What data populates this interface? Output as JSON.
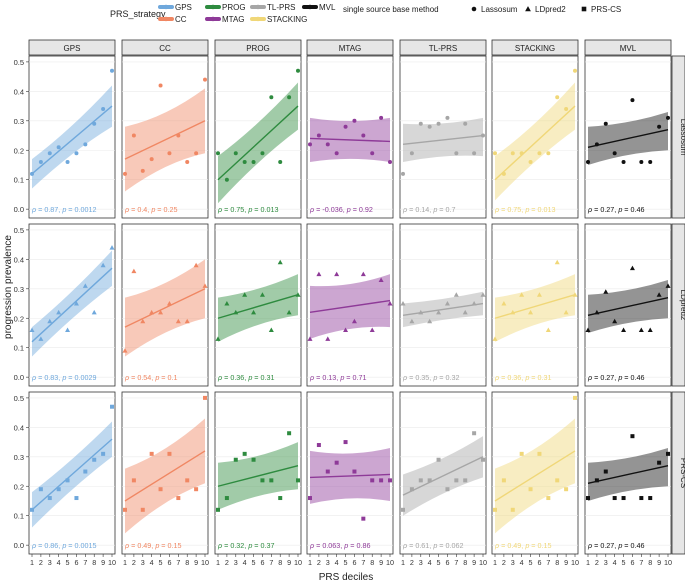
{
  "legend": {
    "strategy_title": "PRS_strategy",
    "strategies": [
      {
        "name": "GPS",
        "color": "#6fa8dc"
      },
      {
        "name": "CC",
        "color": "#f08763"
      },
      {
        "name": "PROG",
        "color": "#2e8b3f"
      },
      {
        "name": "MTAG",
        "color": "#8e3a98"
      },
      {
        "name": "TL-PRS",
        "color": "#a6a6a6"
      },
      {
        "name": "STACKING",
        "color": "#f0d778"
      },
      {
        "name": "MVL",
        "color": "#111111"
      }
    ],
    "method_title": "single source base method",
    "methods": [
      {
        "name": "Lassosum",
        "shape": "circle"
      },
      {
        "name": "LDpred2",
        "shape": "triangle"
      },
      {
        "name": "PRS-CS",
        "shape": "square"
      }
    ]
  },
  "chart_data": {
    "type": "scatter",
    "xlabel": "PRS deciles",
    "ylabel": "progression prevalence",
    "x": [
      1,
      2,
      3,
      4,
      5,
      6,
      7,
      8,
      9,
      10
    ],
    "xticks": [
      1,
      2,
      3,
      4,
      5,
      6,
      7,
      8,
      9,
      10
    ],
    "ylim": [
      -0.03,
      0.52
    ],
    "yticks": [
      0.0,
      0.1,
      0.2,
      0.3,
      0.4,
      0.5
    ],
    "ytick_labels": [
      "0.0",
      "0.1",
      "0.2",
      "0.3",
      "0.4",
      "0.5"
    ],
    "columns": [
      "GPS",
      "CC",
      "PROG",
      "MTAG",
      "TL-PRS",
      "STACKING",
      "MVL"
    ],
    "rows": [
      "Lassosum",
      "LDpred2",
      "PRS-CS"
    ],
    "panels": {
      "Lassosum": {
        "GPS": {
          "values": [
            0.12,
            0.16,
            0.19,
            0.21,
            0.16,
            0.19,
            0.22,
            0.29,
            0.34,
            0.47
          ],
          "fit": [
            0.12,
            0.35
          ],
          "band": [
            [
              0.07,
              0.17
            ],
            [
              0.28,
              0.42
            ]
          ],
          "rho": "0.87",
          "p": "0.0012"
        },
        "CC": {
          "values": [
            0.12,
            0.25,
            0.13,
            0.17,
            0.42,
            0.19,
            0.25,
            0.16,
            0.19,
            0.44
          ],
          "fit": [
            0.17,
            0.3
          ],
          "band": [
            [
              0.06,
              0.28
            ],
            [
              0.19,
              0.41
            ]
          ],
          "rho": "0.4",
          "p": "0.25"
        },
        "PROG": {
          "values": [
            0.19,
            0.1,
            0.19,
            0.16,
            0.16,
            0.19,
            0.38,
            0.16,
            0.38,
            0.47
          ],
          "fit": [
            0.1,
            0.35
          ],
          "band": [
            [
              0.02,
              0.18
            ],
            [
              0.27,
              0.43
            ]
          ],
          "rho": "0.75",
          "p": "0.013"
        },
        "MTAG": {
          "values": [
            0.22,
            0.25,
            0.22,
            0.19,
            0.28,
            0.3,
            0.25,
            0.19,
            0.31,
            0.16
          ],
          "fit": [
            0.24,
            0.23
          ],
          "band": [
            [
              0.16,
              0.31
            ],
            [
              0.16,
              0.31
            ]
          ],
          "rho": "-0.036",
          "p": "0.92"
        },
        "TL-PRS": {
          "values": [
            0.12,
            0.19,
            0.29,
            0.28,
            0.29,
            0.31,
            0.19,
            0.29,
            0.19,
            0.25
          ],
          "fit": [
            0.22,
            0.25
          ],
          "band": [
            [
              0.16,
              0.29
            ],
            [
              0.18,
              0.31
            ]
          ],
          "rho": "0.14",
          "p": "0.7"
        },
        "STACKING": {
          "values": [
            0.19,
            0.12,
            0.19,
            0.19,
            0.16,
            0.19,
            0.19,
            0.38,
            0.34,
            0.47
          ],
          "fit": [
            0.1,
            0.35
          ],
          "band": [
            [
              0.03,
              0.18
            ],
            [
              0.27,
              0.43
            ]
          ],
          "rho": "0.75",
          "p": "0.013"
        },
        "MVL": {
          "values": [
            0.16,
            0.22,
            0.29,
            0.19,
            0.16,
            0.37,
            0.16,
            0.16,
            0.28,
            0.31
          ],
          "fit": [
            0.21,
            0.27
          ],
          "band": [
            [
              0.15,
              0.28
            ],
            [
              0.2,
              0.33
            ]
          ],
          "rho": "0.27",
          "p": "0.46"
        }
      },
      "LDpred2": {
        "GPS": {
          "values": [
            0.16,
            0.13,
            0.19,
            0.22,
            0.16,
            0.25,
            0.31,
            0.22,
            0.38,
            0.44
          ],
          "fit": [
            0.12,
            0.37
          ],
          "band": [
            [
              0.07,
              0.17
            ],
            [
              0.31,
              0.43
            ]
          ],
          "rho": "0.83",
          "p": "0.0029"
        },
        "CC": {
          "values": [
            0.09,
            0.36,
            0.19,
            0.22,
            0.22,
            0.25,
            0.19,
            0.19,
            0.38,
            0.31
          ],
          "fit": [
            0.17,
            0.3
          ],
          "band": [
            [
              0.07,
              0.27
            ],
            [
              0.2,
              0.4
            ]
          ],
          "rho": "0.54",
          "p": "0.1"
        },
        "PROG": {
          "values": [
            0.13,
            0.25,
            0.22,
            0.28,
            0.22,
            0.28,
            0.16,
            0.39,
            0.22,
            0.28
          ],
          "fit": [
            0.2,
            0.28
          ],
          "band": [
            [
              0.12,
              0.27
            ],
            [
              0.21,
              0.35
            ]
          ],
          "rho": "0.36",
          "p": "0.31"
        },
        "MTAG": {
          "values": [
            0.13,
            0.35,
            0.13,
            0.35,
            0.16,
            0.19,
            0.35,
            0.16,
            0.33,
            0.25
          ],
          "fit": [
            0.22,
            0.26
          ],
          "band": [
            [
              0.13,
              0.31
            ],
            [
              0.17,
              0.35
            ]
          ],
          "rho": "0.13",
          "p": "0.71"
        },
        "TL-PRS": {
          "values": [
            0.25,
            0.19,
            0.22,
            0.19,
            0.22,
            0.25,
            0.28,
            0.22,
            0.25,
            0.28
          ],
          "fit": [
            0.21,
            0.25
          ],
          "band": [
            [
              0.17,
              0.25
            ],
            [
              0.21,
              0.29
            ]
          ],
          "rho": "0.35",
          "p": "0.32"
        },
        "STACKING": {
          "values": [
            0.13,
            0.25,
            0.22,
            0.28,
            0.22,
            0.28,
            0.16,
            0.39,
            0.22,
            0.28
          ],
          "fit": [
            0.2,
            0.28
          ],
          "band": [
            [
              0.12,
              0.27
            ],
            [
              0.21,
              0.35
            ]
          ],
          "rho": "0.36",
          "p": "0.31"
        },
        "MVL": {
          "values": [
            0.16,
            0.22,
            0.29,
            0.19,
            0.16,
            0.37,
            0.16,
            0.16,
            0.28,
            0.31
          ],
          "fit": [
            0.21,
            0.27
          ],
          "band": [
            [
              0.15,
              0.28
            ],
            [
              0.2,
              0.33
            ]
          ],
          "rho": "0.27",
          "p": "0.46"
        }
      },
      "PRS-CS": {
        "GPS": {
          "values": [
            0.12,
            0.19,
            0.16,
            0.19,
            0.22,
            0.16,
            0.25,
            0.29,
            0.31,
            0.47
          ],
          "fit": [
            0.12,
            0.36
          ],
          "band": [
            [
              0.06,
              0.18
            ],
            [
              0.3,
              0.42
            ]
          ],
          "rho": "0.86",
          "p": "0.0015"
        },
        "CC": {
          "values": [
            0.12,
            0.22,
            0.12,
            0.31,
            0.19,
            0.31,
            0.16,
            0.22,
            0.19,
            0.5
          ],
          "fit": [
            0.15,
            0.32
          ],
          "band": [
            [
              0.04,
              0.26
            ],
            [
              0.21,
              0.43
            ]
          ],
          "rho": "0.49",
          "p": "0.15"
        },
        "PROG": {
          "values": [
            0.12,
            0.16,
            0.29,
            0.31,
            0.29,
            0.22,
            0.22,
            0.16,
            0.38,
            0.22
          ],
          "fit": [
            0.2,
            0.27
          ],
          "band": [
            [
              0.12,
              0.28
            ],
            [
              0.19,
              0.35
            ]
          ],
          "rho": "0.32",
          "p": "0.37"
        },
        "MTAG": {
          "values": [
            0.16,
            0.34,
            0.25,
            0.28,
            0.35,
            0.25,
            0.09,
            0.22,
            0.22,
            0.22
          ],
          "fit": [
            0.23,
            0.24
          ],
          "band": [
            [
              0.14,
              0.32
            ],
            [
              0.15,
              0.33
            ]
          ],
          "rho": "0.063",
          "p": "0.86"
        },
        "TL-PRS": {
          "values": [
            0.12,
            0.19,
            0.22,
            0.22,
            0.29,
            0.19,
            0.22,
            0.22,
            0.38,
            0.29
          ],
          "fit": [
            0.17,
            0.3
          ],
          "band": [
            [
              0.1,
              0.24
            ],
            [
              0.23,
              0.37
            ]
          ],
          "rho": "0.61",
          "p": "0.062"
        },
        "STACKING": {
          "values": [
            0.12,
            0.22,
            0.12,
            0.31,
            0.19,
            0.31,
            0.16,
            0.22,
            0.19,
            0.5
          ],
          "fit": [
            0.15,
            0.32
          ],
          "band": [
            [
              0.04,
              0.26
            ],
            [
              0.21,
              0.43
            ]
          ],
          "rho": "0.49",
          "p": "0.15"
        },
        "MVL": {
          "values": [
            0.16,
            0.22,
            0.25,
            0.16,
            0.16,
            0.37,
            0.16,
            0.16,
            0.28,
            0.31
          ],
          "fit": [
            0.21,
            0.27
          ],
          "band": [
            [
              0.15,
              0.28
            ],
            [
              0.2,
              0.33
            ]
          ],
          "rho": "0.27",
          "p": "0.46"
        }
      }
    }
  }
}
